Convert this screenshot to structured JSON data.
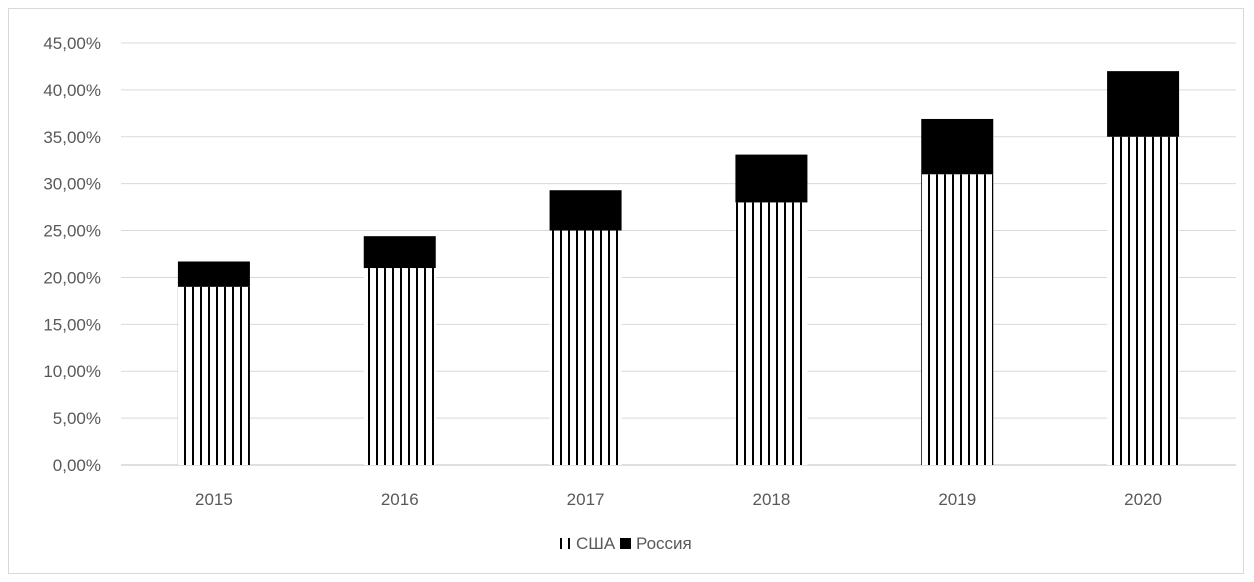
{
  "chart_data": {
    "type": "bar",
    "stacked": true,
    "categories": [
      "2015",
      "2016",
      "2017",
      "2018",
      "2019",
      "2020"
    ],
    "series": [
      {
        "name": "США",
        "values": [
          19.0,
          21.0,
          25.0,
          28.0,
          31.0,
          35.0
        ],
        "pattern": "vertical-stripes",
        "color": "#000000"
      },
      {
        "name": "Россия",
        "values": [
          2.7,
          3.4,
          4.3,
          5.1,
          5.9,
          7.0
        ],
        "pattern": "solid",
        "color": "#000000"
      }
    ],
    "y_ticks": [
      "0,00%",
      "5,00%",
      "10,00%",
      "15,00%",
      "20,00%",
      "25,00%",
      "30,00%",
      "35,00%",
      "40,00%",
      "45,00%"
    ],
    "ylim": [
      0,
      45
    ],
    "grid": true,
    "gridline_color": "#d9d9d9",
    "legend_position": "bottom",
    "title": "",
    "xlabel": "",
    "ylabel": ""
  }
}
